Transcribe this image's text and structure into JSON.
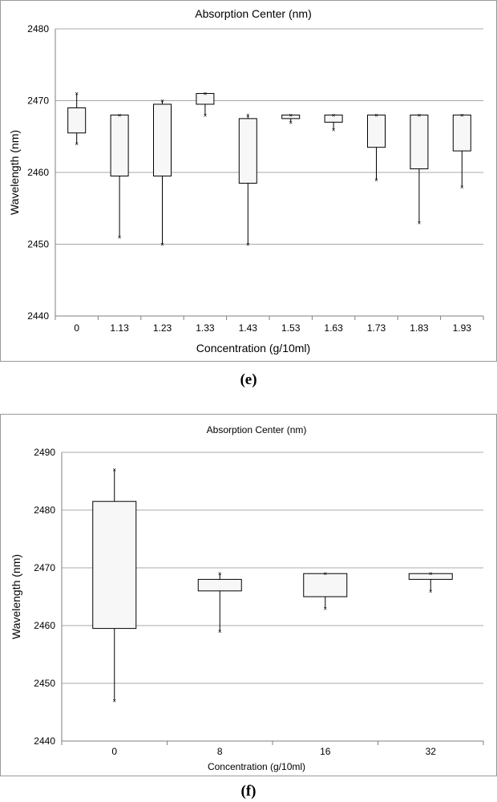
{
  "chart_data": [
    {
      "type": "box",
      "panel": "e",
      "title": "Absorption Center (nm)",
      "xlabel": "Concentration (g/10ml)",
      "ylabel": "Wavelength (nm)",
      "ylim": [
        2440,
        2480
      ],
      "yticks": [
        2440,
        2450,
        2460,
        2470,
        2480
      ],
      "grid": true,
      "categories": [
        "0",
        "1.13",
        "1.23",
        "1.33",
        "1.43",
        "1.53",
        "1.63",
        "1.73",
        "1.83",
        "1.93"
      ],
      "boxes": [
        {
          "max": 2471,
          "q3": 2469,
          "q1": 2465.5,
          "min": 2464
        },
        {
          "max": 2468,
          "q3": 2468,
          "q1": 2459.5,
          "min": 2451
        },
        {
          "max": 2470,
          "q3": 2469.5,
          "q1": 2459.5,
          "min": 2450
        },
        {
          "max": 2471,
          "q3": 2471,
          "q1": 2469.5,
          "min": 2468
        },
        {
          "max": 2468,
          "q3": 2467.5,
          "q1": 2458.5,
          "min": 2450
        },
        {
          "max": 2468,
          "q3": 2468,
          "q1": 2467.5,
          "min": 2467
        },
        {
          "max": 2468,
          "q3": 2468,
          "q1": 2467,
          "min": 2466
        },
        {
          "max": 2468,
          "q3": 2468,
          "q1": 2463.5,
          "min": 2459
        },
        {
          "max": 2468,
          "q3": 2468,
          "q1": 2460.5,
          "min": 2453
        },
        {
          "max": 2468,
          "q3": 2468,
          "q1": 2463,
          "min": 2458
        }
      ]
    },
    {
      "type": "box",
      "panel": "f",
      "title": "Absorption Center (nm)",
      "xlabel": "Concentration (g/10ml)",
      "ylabel": "Wavelength (nm)",
      "ylim": [
        2440,
        2490
      ],
      "yticks": [
        2440,
        2450,
        2460,
        2470,
        2480,
        2490
      ],
      "grid": true,
      "categories": [
        "0",
        "8",
        "16",
        "32"
      ],
      "boxes": [
        {
          "max": 2487,
          "q3": 2481.5,
          "q1": 2459.5,
          "min": 2447
        },
        {
          "max": 2469,
          "q3": 2468,
          "q1": 2466,
          "min": 2459
        },
        {
          "max": 2469,
          "q3": 2469,
          "q1": 2465,
          "min": 2463
        },
        {
          "max": 2469,
          "q3": 2469,
          "q1": 2468,
          "min": 2466
        }
      ]
    }
  ],
  "figure_labels": {
    "e": "(e)",
    "f": "(f)"
  },
  "colors": {
    "grid": "#a8a8a8",
    "axis": "#7f7f7f",
    "box_fill": "#f7f7f7",
    "box_stroke": "#000000"
  }
}
